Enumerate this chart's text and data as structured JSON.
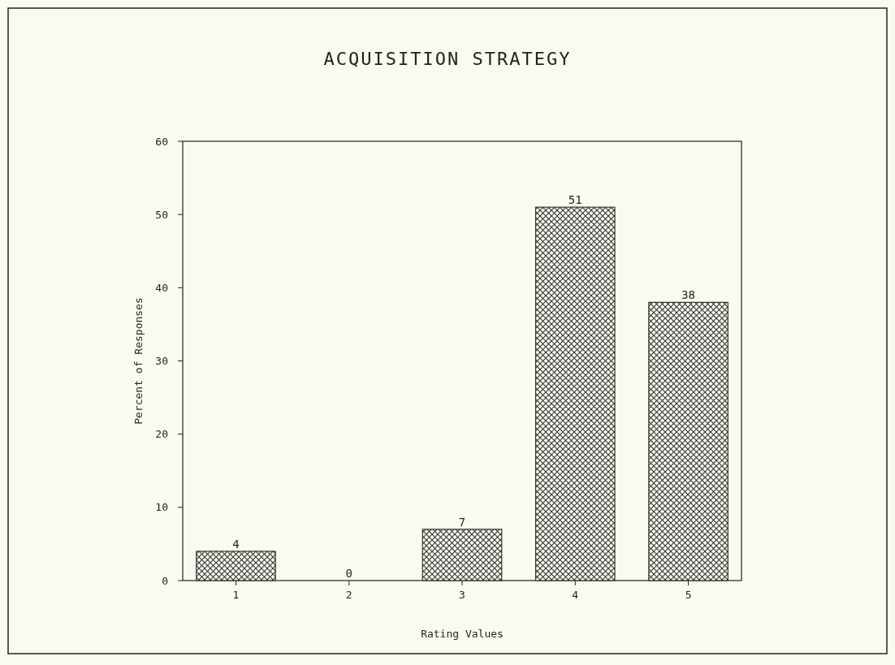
{
  "chart_data": {
    "type": "bar",
    "title": "ACQUISITION STRATEGY",
    "xlabel": "Rating Values",
    "ylabel": "Percent of Responses",
    "categories": [
      "1",
      "2",
      "3",
      "4",
      "5"
    ],
    "values": [
      4,
      0,
      7,
      51,
      38
    ],
    "color": "#333333",
    "ylim": [
      0,
      60
    ],
    "yticks": [
      0,
      10,
      20,
      30,
      40,
      50,
      60
    ],
    "data_labels": true
  }
}
